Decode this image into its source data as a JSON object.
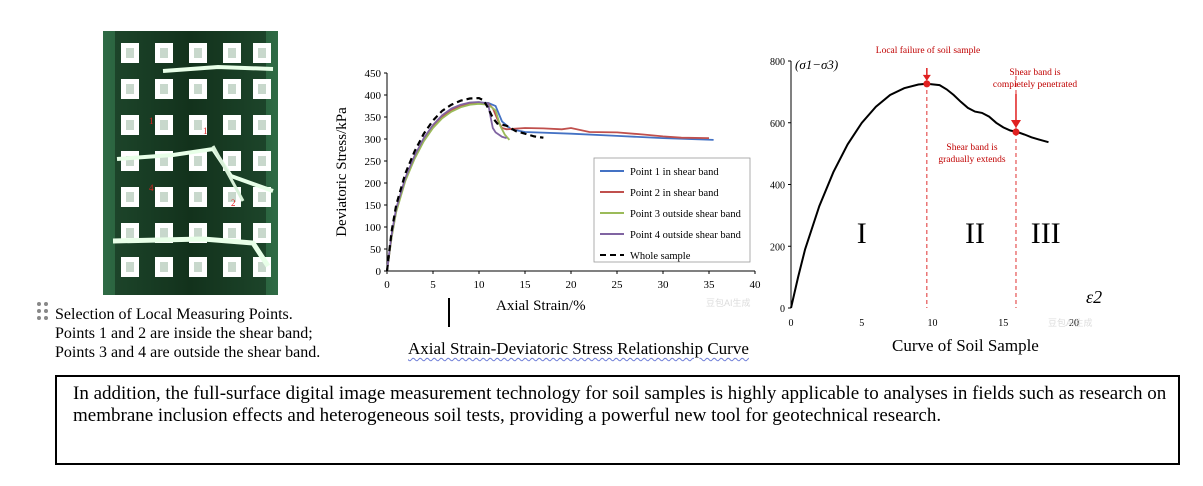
{
  "photo_caption": {
    "line1": "Selection of Local Measuring Points.",
    "line2": "Points 1 and 2 are inside the shear band;",
    "line3": "Points 3 and 4 are outside the shear band."
  },
  "photo": {
    "point_labels": [
      "1",
      "1",
      "4",
      "2"
    ]
  },
  "middle_title": "Axial Strain-Deviatoric Stress Relationship Curve",
  "right_title": "Curve of Soil Sample",
  "paragraph": "In addition, the full-surface digital image measurement technology for soil samples is highly applicable to analyses in fields such as research on membrane inclusion effects and heterogeneous soil tests, providing a powerful new tool for geotechnical research.",
  "watermark_text": "豆包AI生成",
  "chart_data": [
    {
      "type": "line",
      "xlabel": "Axial Strain/%",
      "ylabel": "Deviatoric Stress/kPa",
      "xlim": [
        0,
        40
      ],
      "ylim": [
        0,
        450
      ],
      "xticks": [
        "0",
        "5",
        "10",
        "15",
        "20",
        "25",
        "30",
        "35",
        "40"
      ],
      "yticks": [
        "0",
        "50",
        "100",
        "150",
        "200",
        "250",
        "300",
        "350",
        "400",
        "450"
      ],
      "legend_position": "bottom-right",
      "series": [
        {
          "name": "Point 1 in shear band",
          "color": "#4472c4",
          "dashed": false,
          "x": [
            0,
            0.5,
            1,
            2,
            3,
            4,
            5,
            6,
            7,
            8,
            9,
            10,
            11,
            11.8,
            12.5,
            13.5,
            15,
            20,
            25,
            30,
            35.5
          ],
          "y": [
            0,
            80,
            140,
            210,
            260,
            300,
            330,
            352,
            367,
            376,
            381,
            383,
            382,
            375,
            340,
            322,
            316,
            312,
            307,
            302,
            298
          ]
        },
        {
          "name": "Point 2 in shear band",
          "color": "#c0504d",
          "dashed": false,
          "x": [
            0,
            0.5,
            1,
            2,
            3,
            4,
            5,
            6,
            7,
            8,
            9,
            10,
            11,
            11.5,
            12,
            12.5,
            13,
            15,
            17,
            19,
            20,
            22,
            25,
            28,
            30,
            32,
            35
          ],
          "y": [
            0,
            78,
            138,
            208,
            258,
            298,
            328,
            350,
            365,
            375,
            380,
            382,
            381,
            370,
            345,
            325,
            322,
            325,
            324,
            322,
            325,
            316,
            315,
            310,
            306,
            303,
            302
          ]
        },
        {
          "name": "Point 3 outside shear band",
          "color": "#9bbb59",
          "dashed": false,
          "x": [
            0,
            0.5,
            1,
            2,
            3,
            4,
            5,
            6,
            7,
            8,
            9,
            10,
            11,
            11.8,
            12.3,
            12.8,
            13.3
          ],
          "y": [
            0,
            76,
            134,
            205,
            255,
            295,
            325,
            347,
            362,
            372,
            378,
            380,
            378,
            365,
            330,
            310,
            298
          ]
        },
        {
          "name": "Point 4 outside shear band",
          "color": "#8064a2",
          "dashed": false,
          "x": [
            0,
            0.5,
            1,
            2,
            3,
            4,
            5,
            6,
            7,
            8,
            9,
            10,
            11,
            11.3,
            11.5,
            11.8,
            12.5,
            13
          ],
          "y": [
            0,
            82,
            142,
            212,
            262,
            302,
            332,
            354,
            369,
            378,
            383,
            384,
            380,
            345,
            325,
            315,
            305,
            302
          ]
        },
        {
          "name": "Whole sample",
          "color": "#000000",
          "dashed": true,
          "x": [
            0,
            0.5,
            1,
            2,
            3,
            4,
            5,
            6,
            7,
            8,
            9,
            10,
            10.5,
            11,
            11.5,
            12,
            13,
            14,
            15,
            16,
            17
          ],
          "y": [
            0,
            90,
            150,
            222,
            272,
            312,
            342,
            364,
            378,
            387,
            392,
            393,
            388,
            370,
            348,
            335,
            330,
            318,
            312,
            306,
            303
          ]
        }
      ]
    },
    {
      "type": "line",
      "xlabel": "ε2",
      "ylabel": "(σ1−σ3)",
      "xlim": [
        0,
        20
      ],
      "ylim": [
        0,
        800
      ],
      "xticks": [
        "0",
        "5",
        "10",
        "15",
        "20"
      ],
      "yticks": [
        "0",
        "200",
        "400",
        "600",
        "800"
      ],
      "series": [
        {
          "name": "Curve of Soil Sample",
          "color": "#000000",
          "dashed": false,
          "x": [
            0,
            0.5,
            1,
            2,
            3,
            4,
            5,
            6,
            7,
            8,
            9,
            9.6,
            10.5,
            11,
            11.5,
            12,
            12.5,
            13,
            13.5,
            14,
            14.5,
            15,
            15.5,
            16,
            16.5,
            17,
            17.5,
            18.2
          ],
          "y": [
            0,
            100,
            190,
            330,
            440,
            530,
            600,
            652,
            690,
            712,
            724,
            726,
            722,
            708,
            690,
            668,
            648,
            636,
            632,
            620,
            600,
            585,
            575,
            570,
            562,
            553,
            546,
            537
          ]
        }
      ],
      "markers": [
        {
          "x": 9.6,
          "y": 726
        },
        {
          "x": 15.9,
          "y": 570
        }
      ],
      "vlines": [
        9.6,
        15.9
      ],
      "region_labels": [
        {
          "label": "I",
          "x": 5
        },
        {
          "label": "II",
          "x": 13
        },
        {
          "label": "III",
          "x": 18
        }
      ],
      "annotations": [
        {
          "text": "Local failure of soil sample"
        },
        {
          "text": "Shear band is",
          "text2": "completely penetrated"
        },
        {
          "text": "Shear band is",
          "text2": "gradually extends"
        }
      ]
    }
  ]
}
